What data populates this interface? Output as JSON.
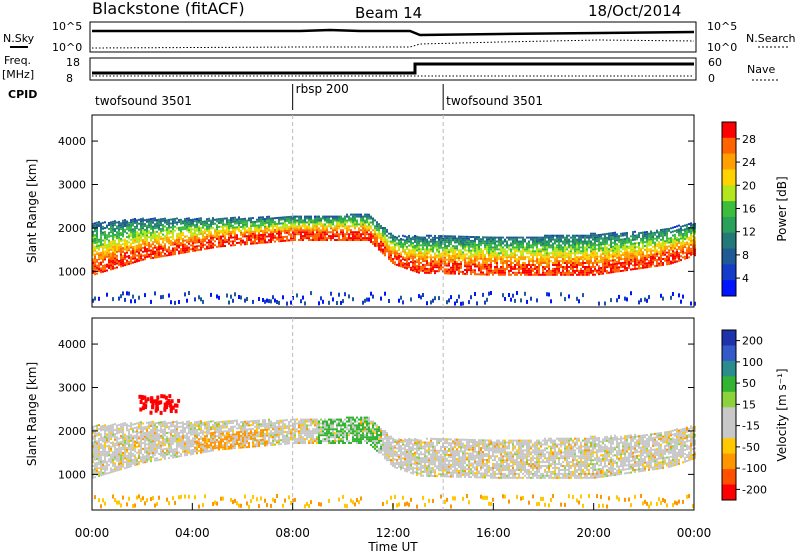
{
  "header": {
    "title": "Blackstone (fitACF)",
    "beam": "Beam 14",
    "date": "18/Oct/2014"
  },
  "top_panels": {
    "nsky_label": "N.Sky",
    "nsearch_label": "N.Search",
    "nsky_ticks": [
      "10^5",
      "10^0"
    ],
    "nsearch_ticks": [
      "10^5",
      "10^0"
    ],
    "freq_label": "Freq.",
    "freq_unit": "[MHz]",
    "freq_ticks": [
      "18",
      "8"
    ],
    "nave_label": "Nave",
    "nave_ticks": [
      "60",
      "0"
    ],
    "cpid_label": "CPID",
    "cpid_segments": [
      {
        "label": "twofsound 3501",
        "start_hour": 0
      },
      {
        "label": "rbsp 200",
        "start_hour": 8
      },
      {
        "label": "twofsound 3501",
        "start_hour": 14
      }
    ]
  },
  "chart_data": [
    {
      "type": "heatmap",
      "ylabel": "Slant Range [km]",
      "yticks": [
        1000,
        2000,
        3000,
        4000
      ],
      "ylim": [
        180,
        4600
      ],
      "xlim_hours": [
        0,
        24
      ],
      "colorbar_label": "Power [dB]",
      "colorbar_ticks": [
        "28",
        "24",
        "20",
        "16",
        "12",
        "8",
        "4"
      ],
      "colorbar_colors": [
        "#ff0000",
        "#ff6400",
        "#ffa000",
        "#ffd200",
        "#b4e61e",
        "#3cbe3c",
        "#2aa05a",
        "#237878",
        "#1e5a96",
        "#143cc8",
        "#0014ff"
      ]
    },
    {
      "type": "heatmap",
      "ylabel": "Slant Range [km]",
      "yticks": [
        1000,
        2000,
        3000,
        4000
      ],
      "ylim": [
        180,
        4600
      ],
      "xlim_hours": [
        0,
        24
      ],
      "colorbar_label": "Velocity [m s⁻¹]",
      "colorbar_ticks": [
        "200",
        "100",
        "50",
        "15",
        "-15",
        "-50",
        "-100",
        "-200"
      ],
      "colorbar_colors": [
        "#1e32aa",
        "#325ac8",
        "#2a8c8c",
        "#32b432",
        "#8cd23c",
        "#c8c8c8",
        "#c8c8c8",
        "#ffc800",
        "#ff9600",
        "#ff5000",
        "#ff0000"
      ]
    }
  ],
  "x_axis": {
    "ticks": [
      "00:00",
      "04:00",
      "08:00",
      "12:00",
      "16:00",
      "20:00",
      "00:00"
    ],
    "label": "Time UT"
  }
}
